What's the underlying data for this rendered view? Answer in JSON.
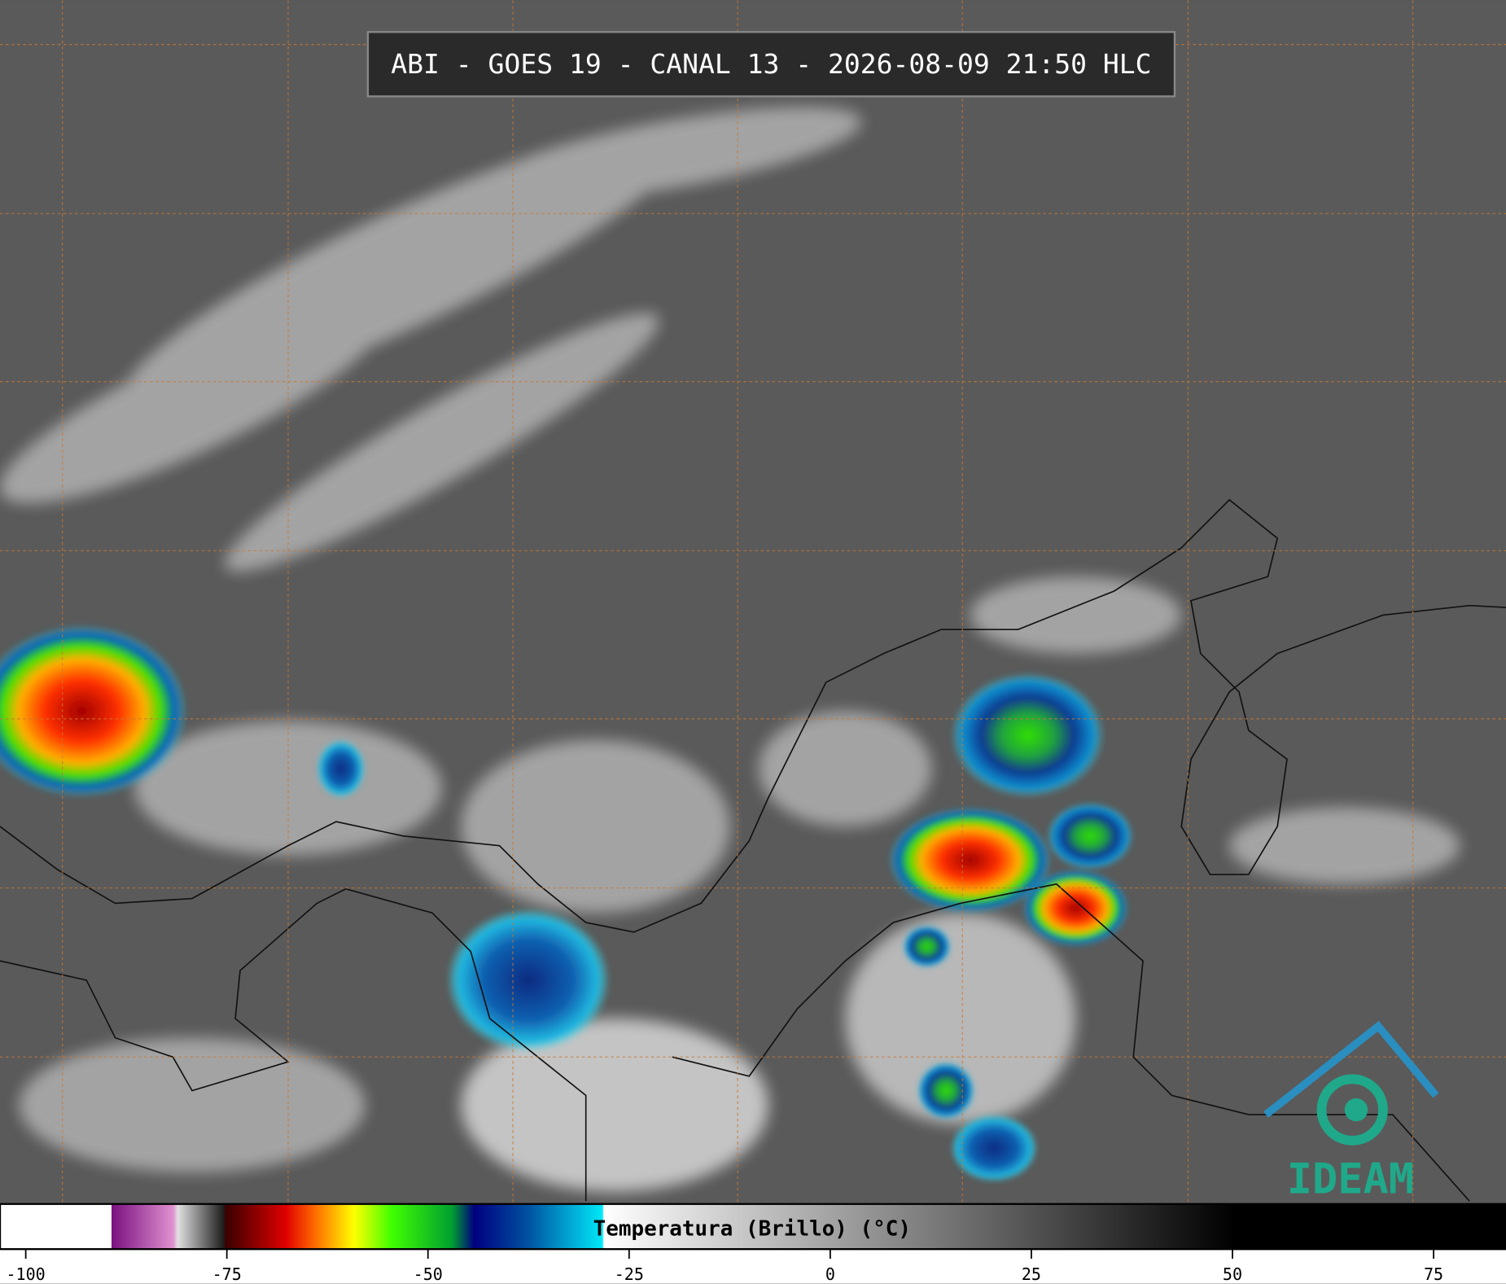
{
  "header": {
    "title": "ABI - GOES 19 - CANAL 13 - 2026-08-09 21:50 HLC"
  },
  "colorbar": {
    "label": "Temperatura (Brillo) (°C)",
    "lim": [
      -103.2,
      84.0
    ],
    "ticks": [
      -100,
      -75,
      -50,
      -25,
      0,
      25,
      50,
      75
    ]
  },
  "logo": {
    "text": "IDEAM"
  }
}
